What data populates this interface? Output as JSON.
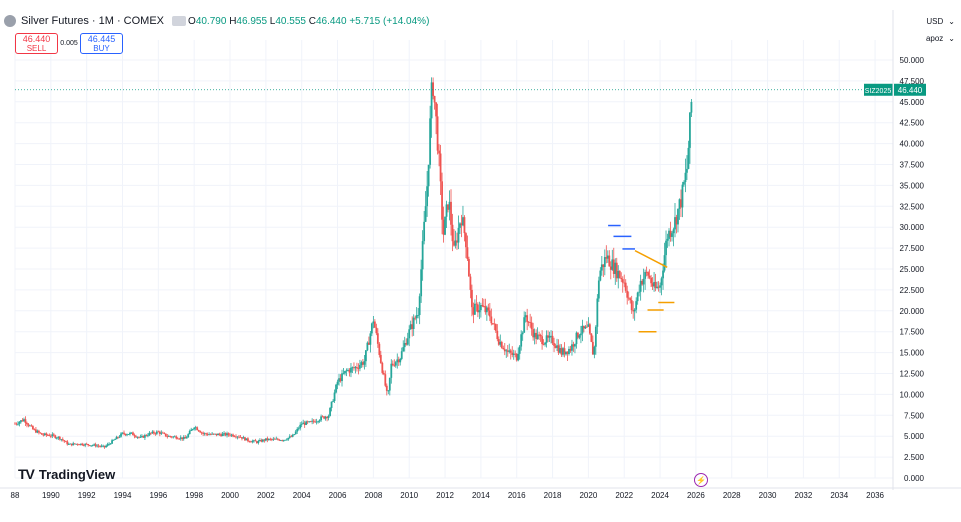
{
  "header": {
    "symbol_title": "Silver Futures · 1M · COMEX",
    "open_label": "O",
    "open": "40.790",
    "high_label": "H",
    "high": "46.955",
    "low_label": "L",
    "low": "40.555",
    "close_label": "C",
    "close": "46.440",
    "change": "+5.715 (+14.04%)"
  },
  "trade": {
    "sell_price": "46.440",
    "sell_label": "SELL",
    "spread": "0.005",
    "buy_price": "46.445",
    "buy_label": "BUY"
  },
  "right_controls": {
    "currency": "USD",
    "scale_mode": "apoz"
  },
  "price_badge": {
    "symbol": "SIZ2025",
    "price": "46.440"
  },
  "brand": {
    "name": "TradingView"
  },
  "colors": {
    "up": "#26a69a",
    "down": "#ef5350",
    "last_price": "#089981",
    "annotation_blue": "#2962ff",
    "annotation_orange": "#f59f00"
  },
  "chart_data": {
    "type": "candlestick",
    "title": "Silver Futures · 1M · COMEX",
    "xlabel": "",
    "ylabel": "",
    "x_ticks": [
      "88",
      "1990",
      "1992",
      "1994",
      "1996",
      "1998",
      "2000",
      "2002",
      "2004",
      "2006",
      "2008",
      "2010",
      "2012",
      "2014",
      "2016",
      "2018",
      "2020",
      "2022",
      "2024",
      "2026",
      "2028",
      "2030",
      "2032",
      "2034",
      "2036"
    ],
    "y_ticks": [
      "0.000",
      "2.500",
      "5.000",
      "7.500",
      "10.000",
      "12.500",
      "15.000",
      "17.500",
      "20.000",
      "22.500",
      "25.000",
      "27.500",
      "30.000",
      "32.500",
      "35.000",
      "37.500",
      "40.000",
      "42.500",
      "45.000",
      "47.500",
      "50.000"
    ],
    "ylim": [
      0,
      50
    ],
    "xlim": [
      1988,
      2037
    ],
    "grid": true,
    "last_price": 46.44,
    "series": [
      {
        "name": "SIZ2025",
        "points": [
          {
            "x": 1988.0,
            "close": 6.5
          },
          {
            "x": 1988.5,
            "close": 7.0
          },
          {
            "x": 1989.0,
            "close": 5.8
          },
          {
            "x": 1989.5,
            "close": 5.2
          },
          {
            "x": 1990.0,
            "close": 5.1
          },
          {
            "x": 1990.5,
            "close": 4.8
          },
          {
            "x": 1991.0,
            "close": 4.0
          },
          {
            "x": 1991.5,
            "close": 4.1
          },
          {
            "x": 1992.0,
            "close": 4.0
          },
          {
            "x": 1992.5,
            "close": 3.9
          },
          {
            "x": 1993.0,
            "close": 3.7
          },
          {
            "x": 1993.5,
            "close": 4.5
          },
          {
            "x": 1994.0,
            "close": 5.3
          },
          {
            "x": 1994.5,
            "close": 5.3
          },
          {
            "x": 1995.0,
            "close": 4.8
          },
          {
            "x": 1995.5,
            "close": 5.3
          },
          {
            "x": 1996.0,
            "close": 5.5
          },
          {
            "x": 1996.5,
            "close": 5.0
          },
          {
            "x": 1997.0,
            "close": 4.9
          },
          {
            "x": 1997.5,
            "close": 4.7
          },
          {
            "x": 1998.0,
            "close": 6.2
          },
          {
            "x": 1998.5,
            "close": 5.3
          },
          {
            "x": 1999.0,
            "close": 5.2
          },
          {
            "x": 1999.5,
            "close": 5.2
          },
          {
            "x": 2000.0,
            "close": 5.2
          },
          {
            "x": 2000.5,
            "close": 5.0
          },
          {
            "x": 2001.0,
            "close": 4.5
          },
          {
            "x": 2001.5,
            "close": 4.3
          },
          {
            "x": 2002.0,
            "close": 4.6
          },
          {
            "x": 2002.5,
            "close": 4.6
          },
          {
            "x": 2003.0,
            "close": 4.6
          },
          {
            "x": 2003.5,
            "close": 5.0
          },
          {
            "x": 2004.0,
            "close": 6.5
          },
          {
            "x": 2004.5,
            "close": 6.6
          },
          {
            "x": 2005.0,
            "close": 7.1
          },
          {
            "x": 2005.5,
            "close": 7.5
          },
          {
            "x": 2006.0,
            "close": 11.5
          },
          {
            "x": 2006.5,
            "close": 12.8
          },
          {
            "x": 2007.0,
            "close": 13.2
          },
          {
            "x": 2007.5,
            "close": 14.0
          },
          {
            "x": 2008.0,
            "close": 19.0
          },
          {
            "x": 2008.5,
            "close": 13.0
          },
          {
            "x": 2008.8,
            "close": 9.5
          },
          {
            "x": 2009.0,
            "close": 13.5
          },
          {
            "x": 2009.5,
            "close": 14.5
          },
          {
            "x": 2010.0,
            "close": 17.5
          },
          {
            "x": 2010.5,
            "close": 20.0
          },
          {
            "x": 2011.0,
            "close": 35.0
          },
          {
            "x": 2011.3,
            "close": 48.0
          },
          {
            "x": 2011.6,
            "close": 40.0
          },
          {
            "x": 2011.9,
            "close": 29.0
          },
          {
            "x": 2012.2,
            "close": 33.5
          },
          {
            "x": 2012.5,
            "close": 27.0
          },
          {
            "x": 2012.9,
            "close": 31.5
          },
          {
            "x": 2013.2,
            "close": 28.0
          },
          {
            "x": 2013.5,
            "close": 20.0
          },
          {
            "x": 2014.0,
            "close": 20.5
          },
          {
            "x": 2014.5,
            "close": 19.5
          },
          {
            "x": 2015.0,
            "close": 16.5
          },
          {
            "x": 2015.5,
            "close": 15.0
          },
          {
            "x": 2016.0,
            "close": 14.5
          },
          {
            "x": 2016.5,
            "close": 19.5
          },
          {
            "x": 2017.0,
            "close": 17.0
          },
          {
            "x": 2017.5,
            "close": 16.5
          },
          {
            "x": 2018.0,
            "close": 16.5
          },
          {
            "x": 2018.5,
            "close": 15.0
          },
          {
            "x": 2019.0,
            "close": 15.5
          },
          {
            "x": 2019.5,
            "close": 17.5
          },
          {
            "x": 2020.0,
            "close": 17.8
          },
          {
            "x": 2020.3,
            "close": 14.5
          },
          {
            "x": 2020.6,
            "close": 24.5
          },
          {
            "x": 2021.0,
            "close": 26.5
          },
          {
            "x": 2021.5,
            "close": 25.0
          },
          {
            "x": 2022.0,
            "close": 23.5
          },
          {
            "x": 2022.5,
            "close": 19.5
          },
          {
            "x": 2022.9,
            "close": 23.5
          },
          {
            "x": 2023.3,
            "close": 24.5
          },
          {
            "x": 2023.7,
            "close": 22.5
          },
          {
            "x": 2024.0,
            "close": 23.0
          },
          {
            "x": 2024.4,
            "close": 29.0
          },
          {
            "x": 2024.8,
            "close": 30.5
          },
          {
            "x": 2025.2,
            "close": 33.5
          },
          {
            "x": 2025.5,
            "close": 37.0
          },
          {
            "x": 2025.8,
            "close": 46.44
          }
        ]
      }
    ],
    "annotations": [
      {
        "type": "hline",
        "color": "blue",
        "x_from": 2021.1,
        "x_to": 2021.8,
        "y": 30.2
      },
      {
        "type": "hline",
        "color": "blue",
        "x_from": 2021.4,
        "x_to": 2022.4,
        "y": 28.9
      },
      {
        "type": "hline",
        "color": "blue",
        "x_from": 2021.9,
        "x_to": 2022.6,
        "y": 27.4
      },
      {
        "type": "trendline",
        "color": "orange",
        "x_from": 2022.6,
        "y_from": 27.2,
        "x_to": 2024.4,
        "y_to": 25.2
      },
      {
        "type": "hline",
        "color": "orange",
        "x_from": 2022.8,
        "x_to": 2023.8,
        "y": 17.5
      },
      {
        "type": "hline",
        "color": "orange",
        "x_from": 2023.3,
        "x_to": 2024.2,
        "y": 20.1
      },
      {
        "type": "hline",
        "color": "orange",
        "x_from": 2023.9,
        "x_to": 2024.8,
        "y": 21.0
      }
    ]
  }
}
